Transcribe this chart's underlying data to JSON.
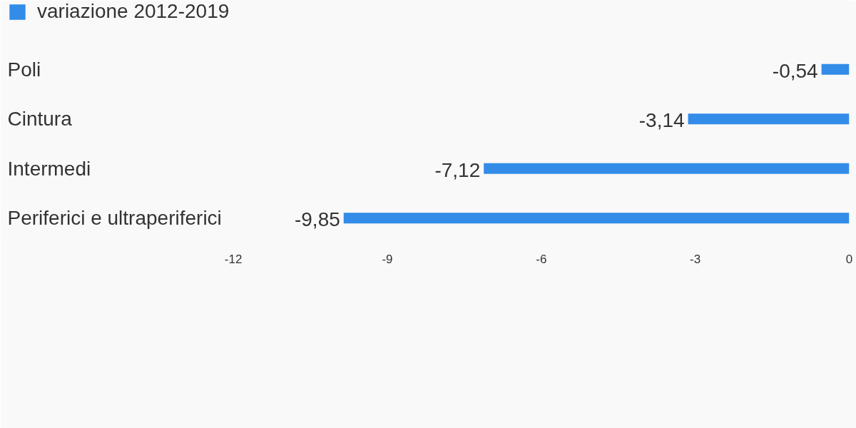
{
  "chart_data": {
    "type": "bar",
    "orientation": "horizontal",
    "categories": [
      "Poli",
      "Cintura",
      "Intermedi",
      "Periferici e ultraperiferici"
    ],
    "series": [
      {
        "name": "variazione 2012-2019",
        "color": "#328ce8",
        "values": [
          -0.54,
          -3.14,
          -7.12,
          -9.85
        ],
        "value_labels": [
          "-0,54",
          "-3,14",
          "-7,12",
          "-9,85"
        ]
      }
    ],
    "xlim": [
      -16.4,
      0
    ],
    "xticks": [
      -12,
      -9,
      -6,
      -3,
      0
    ],
    "grid": false,
    "legend": "top left"
  }
}
